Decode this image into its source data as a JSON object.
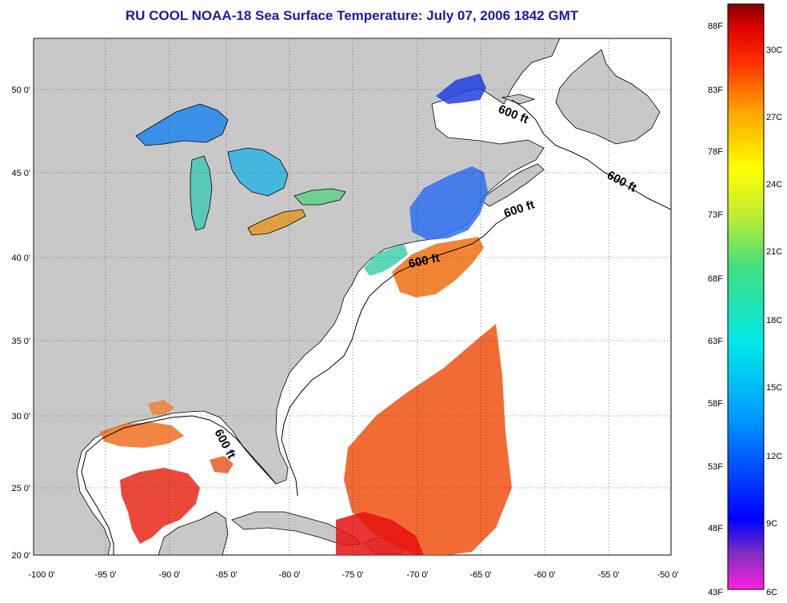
{
  "title": "RU COOL  NOAA-18  Sea Surface Temperature:  July 07, 2006 1842 GMT",
  "axes": {
    "x_ticks": [
      "-100 0'",
      "-95 0'",
      "-90 0'",
      "-85 0'",
      "-80 0'",
      "-75 0'",
      "-70 0'",
      "-65 0'",
      "-60 0'",
      "-55 0'",
      "-50 0'"
    ],
    "y_ticks": [
      "50 0'",
      "45 0'",
      "40 0'",
      "35 0'",
      "30 0'",
      "25 0'",
      "20 0'"
    ]
  },
  "contour_labels": [
    "600 ft",
    "600 ft",
    "600 ft",
    "600 ft",
    "600 ft"
  ],
  "colorbar": {
    "fahrenheit": [
      "88F",
      "83F",
      "78F",
      "73F",
      "68F",
      "63F",
      "58F",
      "53F",
      "48F",
      "43F"
    ],
    "celsius": [
      "30C",
      "27C",
      "24C",
      "21C",
      "18C",
      "15C",
      "12C",
      "9C",
      "6C"
    ]
  },
  "colors": {
    "land": "#c8c8c8",
    "ocean": "#ffffff",
    "title": "#1a1aa8"
  }
}
